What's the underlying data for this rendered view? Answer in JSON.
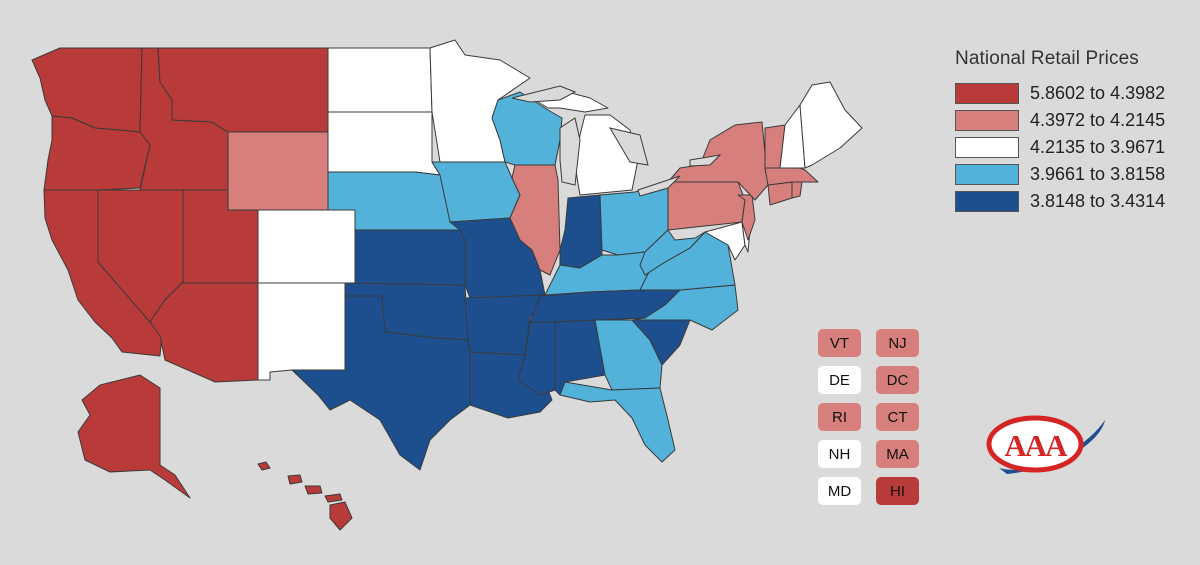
{
  "colors": {
    "background": "#dadada",
    "bin1": "#b83b39",
    "bin2": "#d77f7d",
    "bin3": "#ffffff",
    "bin4": "#52b2da",
    "bin5": "#1d4f8e",
    "small_highest": "#b83b39",
    "lakes": "#dadada"
  },
  "legend": {
    "title": "National Retail Prices",
    "items": [
      {
        "label": "5.8602 to 4.3982",
        "color": "#b83b39"
      },
      {
        "label": "4.3972 to 4.2145",
        "color": "#d77f7d"
      },
      {
        "label": "4.2135 to 3.9671",
        "color": "#ffffff"
      },
      {
        "label": "3.9661 to 3.8158",
        "color": "#52b2da"
      },
      {
        "label": "3.8148 to 3.4314",
        "color": "#1d4f8e"
      }
    ]
  },
  "state_bins": {
    "WA": 1,
    "OR": 1,
    "CA": 1,
    "NV": 1,
    "ID": 1,
    "MT": 1,
    "UT": 1,
    "AZ": 1,
    "AK": 1,
    "HI": 1,
    "WY": 2,
    "IL": 2,
    "NY": 2,
    "PA": 2,
    "VT": 2,
    "MA": 2,
    "CT": 2,
    "RI": 2,
    "NJ": 2,
    "DC": 2,
    "ND": 3,
    "SD": 3,
    "MN": 3,
    "CO": 3,
    "NM": 3,
    "MI": 3,
    "ME": 3,
    "NH": 3,
    "DE": 3,
    "MD": 3,
    "NE": 4,
    "IA": 4,
    "WI": 4,
    "OH": 4,
    "KY": 4,
    "WV": 4,
    "VA": 4,
    "NC": 4,
    "GA": 4,
    "FL": 4,
    "KS": 5,
    "OK": 5,
    "TX": 5,
    "MO": 5,
    "AR": 5,
    "LA": 5,
    "MS": 5,
    "AL": 5,
    "TN": 5,
    "IN": 5,
    "SC": 5
  },
  "small_states": [
    {
      "abbr": "VT",
      "bin": 2
    },
    {
      "abbr": "NJ",
      "bin": 2
    },
    {
      "abbr": "DE",
      "bin": 3
    },
    {
      "abbr": "DC",
      "bin": 2
    },
    {
      "abbr": "RI",
      "bin": 2
    },
    {
      "abbr": "CT",
      "bin": 2
    },
    {
      "abbr": "NH",
      "bin": 3
    },
    {
      "abbr": "MA",
      "bin": 2
    },
    {
      "abbr": "MD",
      "bin": 3
    },
    {
      "abbr": "HI",
      "bin": 1
    }
  ],
  "logo": {
    "text": "AAA"
  }
}
